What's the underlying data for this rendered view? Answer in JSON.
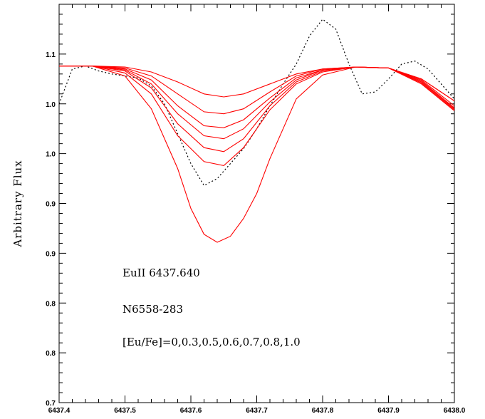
{
  "chart_data": {
    "type": "line",
    "ylabel": "Arbitrary Flux",
    "xlabel": "",
    "xlim": [
      6437.4,
      6438.0
    ],
    "ylim": [
      0.7,
      1.1
    ],
    "x_tick_labels": [
      "6437.4",
      "6437.5",
      "6437.6",
      "6437.7",
      "6437.8",
      "6437.9",
      "6438.0"
    ],
    "y_tick_labels": [
      "0.7",
      "0.8",
      "0.8",
      "0.9",
      "0.9",
      "1.0",
      "1.0",
      "1.1"
    ],
    "annotations": [
      "EuII 6437.640",
      "N6558-283",
      "[Eu/Fe]=0,0.3,0.5,0.6,0.7,0.8,1.0"
    ],
    "series": [
      {
        "style": "observed",
        "color": "#000000",
        "x": [
          6437.4,
          6437.42,
          6437.44,
          6437.46,
          6437.48,
          6437.5,
          6437.52,
          6437.54,
          6437.56,
          6437.58,
          6437.6,
          6437.62,
          6437.64,
          6437.66,
          6437.68,
          6437.7,
          6437.72,
          6437.74,
          6437.76,
          6437.78,
          6437.8,
          6437.82,
          6437.84,
          6437.86,
          6437.88,
          6437.9,
          6437.92,
          6437.94,
          6437.96,
          6437.98,
          6438.0
        ],
        "y": [
          1.0,
          1.035,
          1.038,
          1.033,
          1.03,
          1.028,
          1.026,
          1.018,
          1.0,
          0.97,
          0.94,
          0.918,
          0.925,
          0.94,
          0.955,
          0.975,
          0.998,
          1.02,
          1.04,
          1.068,
          1.085,
          1.075,
          1.04,
          1.01,
          1.012,
          1.025,
          1.04,
          1.043,
          1.035,
          1.02,
          1.005
        ]
      },
      {
        "style": "synthetic",
        "color": "#ff0000",
        "x": [
          6437.4,
          6437.45,
          6437.5,
          6437.54,
          6437.58,
          6437.62,
          6437.65,
          6437.68,
          6437.72,
          6437.76,
          6437.8,
          6437.85,
          6437.9,
          6437.95,
          6438.0
        ],
        "y": [
          1.038,
          1.038,
          1.037,
          1.032,
          1.022,
          1.01,
          1.007,
          1.01,
          1.02,
          1.03,
          1.035,
          1.037,
          1.036,
          1.025,
          1.003
        ]
      },
      {
        "style": "synthetic",
        "color": "#ff0000",
        "x": [
          6437.4,
          6437.45,
          6437.5,
          6437.54,
          6437.58,
          6437.62,
          6437.65,
          6437.68,
          6437.72,
          6437.76,
          6437.8,
          6437.85,
          6437.9,
          6437.95,
          6438.0
        ],
        "y": [
          1.038,
          1.038,
          1.036,
          1.028,
          1.01,
          0.992,
          0.99,
          0.995,
          1.012,
          1.028,
          1.035,
          1.037,
          1.036,
          1.025,
          1.003
        ]
      },
      {
        "style": "synthetic",
        "color": "#ff0000",
        "x": [
          6437.4,
          6437.45,
          6437.5,
          6437.54,
          6437.58,
          6437.62,
          6437.65,
          6437.68,
          6437.72,
          6437.76,
          6437.8,
          6437.85,
          6437.9,
          6437.95,
          6438.0
        ],
        "y": [
          1.038,
          1.038,
          1.035,
          1.024,
          0.998,
          0.978,
          0.976,
          0.984,
          1.006,
          1.026,
          1.034,
          1.037,
          1.036,
          1.024,
          0.998
        ]
      },
      {
        "style": "synthetic",
        "color": "#ff0000",
        "x": [
          6437.4,
          6437.45,
          6437.5,
          6437.54,
          6437.58,
          6437.62,
          6437.65,
          6437.68,
          6437.72,
          6437.76,
          6437.8,
          6437.85,
          6437.9,
          6437.95,
          6438.0
        ],
        "y": [
          1.038,
          1.038,
          1.034,
          1.02,
          0.99,
          0.968,
          0.965,
          0.975,
          1.002,
          1.024,
          1.034,
          1.037,
          1.036,
          1.023,
          0.996
        ]
      },
      {
        "style": "synthetic",
        "color": "#ff0000",
        "x": [
          6437.4,
          6437.45,
          6437.5,
          6437.54,
          6437.58,
          6437.62,
          6437.65,
          6437.68,
          6437.72,
          6437.76,
          6437.8,
          6437.85,
          6437.9,
          6437.95,
          6438.0
        ],
        "y": [
          1.038,
          1.038,
          1.033,
          1.016,
          0.98,
          0.956,
          0.952,
          0.965,
          0.998,
          1.022,
          1.033,
          1.037,
          1.036,
          1.022,
          0.995
        ]
      },
      {
        "style": "synthetic",
        "color": "#ff0000",
        "x": [
          6437.4,
          6437.45,
          6437.5,
          6437.54,
          6437.58,
          6437.62,
          6437.65,
          6437.68,
          6437.72,
          6437.76,
          6437.8,
          6437.85,
          6437.9,
          6437.95,
          6438.0
        ],
        "y": [
          1.038,
          1.038,
          1.031,
          1.01,
          0.968,
          0.942,
          0.938,
          0.956,
          0.994,
          1.02,
          1.032,
          1.037,
          1.036,
          1.021,
          0.994
        ]
      },
      {
        "style": "synthetic",
        "color": "#ff0000",
        "x": [
          6437.4,
          6437.45,
          6437.5,
          6437.54,
          6437.58,
          6437.6,
          6437.62,
          6437.64,
          6437.66,
          6437.68,
          6437.7,
          6437.72,
          6437.76,
          6437.8,
          6437.85,
          6437.9,
          6437.95,
          6438.0
        ],
        "y": [
          1.038,
          1.038,
          1.028,
          0.995,
          0.935,
          0.895,
          0.869,
          0.861,
          0.867,
          0.885,
          0.91,
          0.945,
          1.005,
          1.029,
          1.037,
          1.036,
          1.02,
          0.993
        ]
      }
    ]
  }
}
